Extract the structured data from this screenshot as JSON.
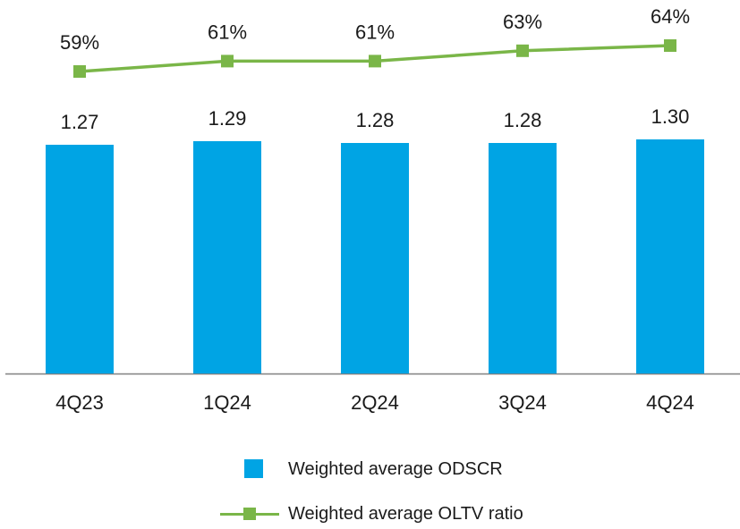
{
  "chart_data": {
    "type": "bar+line",
    "categories": [
      "4Q23",
      "1Q24",
      "2Q24",
      "3Q24",
      "4Q24"
    ],
    "series": [
      {
        "name": "Weighted average ODSCR",
        "type": "bar",
        "values": [
          1.27,
          1.29,
          1.28,
          1.28,
          1.3
        ],
        "labels": [
          "1.27",
          "1.29",
          "1.28",
          "1.28",
          "1.30"
        ],
        "color": "#00a4e4"
      },
      {
        "name": "Weighted average OLTV ratio",
        "type": "line",
        "values": [
          59,
          61,
          61,
          63,
          64
        ],
        "labels": [
          "59%",
          "61%",
          "61%",
          "63%",
          "64%"
        ],
        "color": "#7ab648"
      }
    ],
    "legend_position": "bottom-center",
    "grid": false
  }
}
